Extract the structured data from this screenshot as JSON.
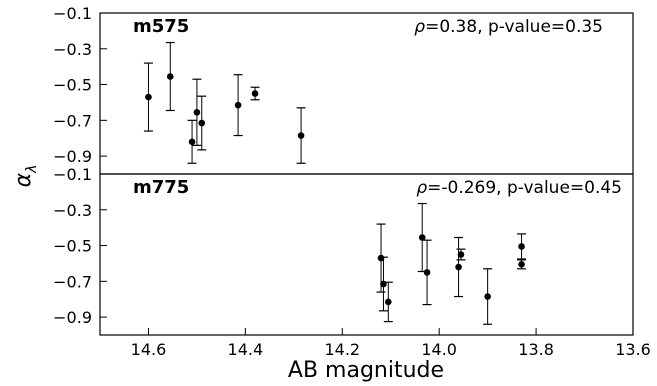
{
  "chart_data": {
    "type": "scatter",
    "xlabel": "AB magnitude",
    "ylabel_symbol": "α",
    "ylabel_subscript": "λ",
    "xlim": [
      14.7,
      13.6
    ],
    "x_ticks": [
      14.6,
      14.4,
      14.2,
      14.0,
      13.8,
      13.6
    ],
    "x_tick_labels": [
      "14.6",
      "14.4",
      "14.2",
      "14.0",
      "13.8",
      "13.6"
    ],
    "panels": [
      {
        "label": "m575",
        "stat_rho_label": "=0.38, p-value=0.35",
        "ylim": [
          -1.0,
          -0.1
        ],
        "y_ticks": [
          -0.1,
          -0.3,
          -0.5,
          -0.7,
          -0.9
        ],
        "y_tick_labels": [
          "−0.1",
          "−0.3",
          "−0.5",
          "−0.7",
          "−0.9"
        ],
        "points": [
          {
            "x": 14.6,
            "y": -0.57,
            "err": 0.19
          },
          {
            "x": 14.555,
            "y": -0.455,
            "err": 0.19
          },
          {
            "x": 14.51,
            "y": -0.82,
            "err": 0.12
          },
          {
            "x": 14.5,
            "y": -0.655,
            "err": 0.185
          },
          {
            "x": 14.49,
            "y": -0.715,
            "err": 0.15
          },
          {
            "x": 14.415,
            "y": -0.615,
            "err": 0.17
          },
          {
            "x": 14.38,
            "y": -0.55,
            "err": 0.035
          },
          {
            "x": 14.285,
            "y": -0.785,
            "err": 0.155
          }
        ]
      },
      {
        "label": "m775",
        "stat_rho_label": "=-0.269, p-value=0.45",
        "ylim": [
          -1.0,
          -0.1
        ],
        "y_ticks": [
          -0.1,
          -0.3,
          -0.5,
          -0.7,
          -0.9
        ],
        "y_tick_labels": [
          "−0.1",
          "−0.3",
          "−0.5",
          "−0.7",
          "−0.9"
        ],
        "points": [
          {
            "x": 14.12,
            "y": -0.57,
            "err": 0.19
          },
          {
            "x": 14.115,
            "y": -0.715,
            "err": 0.15
          },
          {
            "x": 14.105,
            "y": -0.815,
            "err": 0.11
          },
          {
            "x": 14.035,
            "y": -0.455,
            "err": 0.19
          },
          {
            "x": 14.025,
            "y": -0.65,
            "err": 0.18
          },
          {
            "x": 13.96,
            "y": -0.62,
            "err": 0.165
          },
          {
            "x": 13.955,
            "y": -0.55,
            "err": 0.03
          },
          {
            "x": 13.9,
            "y": -0.785,
            "err": 0.155
          },
          {
            "x": 13.83,
            "y": -0.505,
            "err": 0.07
          },
          {
            "x": 13.83,
            "y": -0.605,
            "err": 0.025
          }
        ]
      }
    ]
  }
}
